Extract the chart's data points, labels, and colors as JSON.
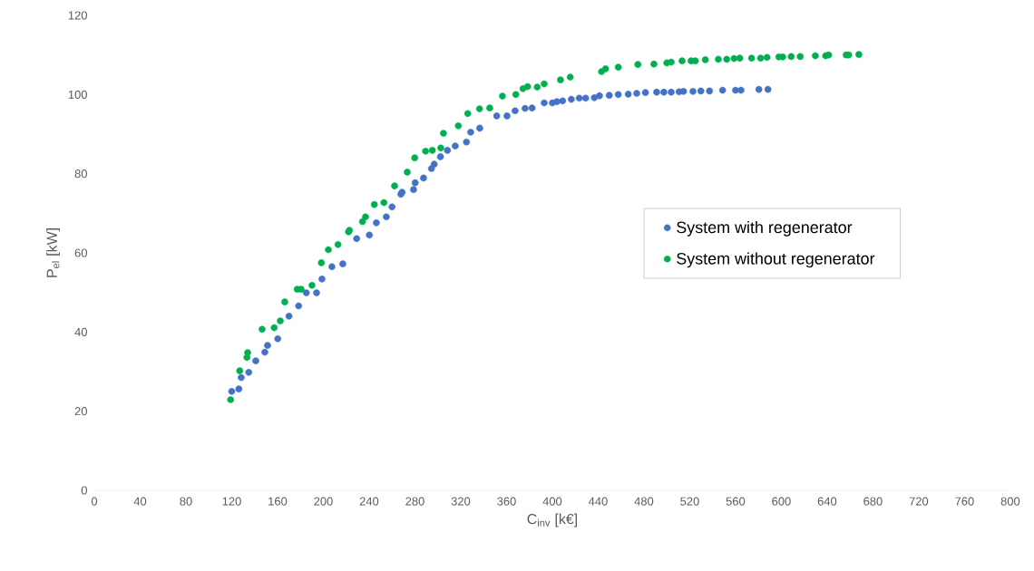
{
  "chart_data": {
    "type": "scatter",
    "xlabel": "C$_{inv}$ [k€]",
    "ylabel": "P$_{el}$ [kW]",
    "xlim": [
      0,
      800
    ],
    "xticks": [
      0,
      40,
      80,
      120,
      160,
      200,
      240,
      280,
      320,
      360,
      400,
      440,
      480,
      520,
      560,
      600,
      640,
      680,
      720,
      760,
      800
    ],
    "ylim": [
      0,
      120
    ],
    "yticks": [
      0,
      20,
      40,
      60,
      80,
      100,
      120
    ],
    "marker": "circle",
    "legend": "right",
    "series": [
      {
        "name": "System with regenerator",
        "color": "#4472c4",
        "x": [
          120,
          126.2,
          128.3,
          134.9,
          141,
          148.9,
          151.3,
          160.2,
          170,
          178.4,
          185.1,
          194.1,
          198.8,
          207.5,
          217,
          229.1,
          240.2,
          246.3,
          255,
          260,
          267.7,
          268.8,
          278.8,
          280.2,
          287.5,
          294.4,
          296.8,
          302.3,
          308.4,
          315.2,
          325,
          328.7,
          336.6,
          351.4,
          360.4,
          367.5,
          376.2,
          382.3,
          392.9,
          400,
          404,
          409,
          416.6,
          423.5,
          429.1,
          436.7,
          441.2,
          449.7,
          457.6,
          466.3,
          473.7,
          481.3,
          491.1,
          497.4,
          503.8,
          510.7,
          514.6,
          522.8,
          529.7,
          537.3,
          548.7,
          560,
          564.8,
          580.4,
          588.3
        ],
        "values": [
          25,
          25.6,
          28.5,
          29.8,
          32.7,
          34.9,
          36.6,
          38.3,
          44,
          46.6,
          49.9,
          49.9,
          53.4,
          56.5,
          57.2,
          63.6,
          64.5,
          67.6,
          69.1,
          71.6,
          74.8,
          75.3,
          76,
          77.7,
          78.9,
          81.3,
          82.4,
          84.3,
          85.9,
          87,
          88,
          90.5,
          91.5,
          94.6,
          94.6,
          95.9,
          96.5,
          96.6,
          97.9,
          97.9,
          98.2,
          98.4,
          98.8,
          99.1,
          99.1,
          99.2,
          99.7,
          99.8,
          100,
          100.1,
          100.3,
          100.5,
          100.6,
          100.6,
          100.6,
          100.7,
          100.8,
          100.8,
          100.9,
          100.9,
          101.1,
          101.1,
          101.1,
          101.3,
          101.3
        ]
      },
      {
        "name": "System without regenerator",
        "color": "#00b050",
        "x": [
          119,
          127,
          133.3,
          133.9,
          146.5,
          157.1,
          162.4,
          166.3,
          177.2,
          180.6,
          190.1,
          198.3,
          204.4,
          212.8,
          222,
          222.8,
          234.2,
          236.8,
          244.5,
          252.9,
          262.2,
          273.3,
          279.8,
          289.3,
          295.2,
          302.6,
          304.9,
          317.9,
          326.1,
          336.4,
          345.3,
          356.4,
          368.1,
          374.4,
          378.4,
          386.8,
          392.9,
          407.1,
          415.6,
          443,
          446.5,
          457.6,
          474.7,
          488.7,
          500,
          503.8,
          513.3,
          521.2,
          524.9,
          533.6,
          545,
          552.3,
          558.7,
          563.7,
          574,
          581.9,
          587.5,
          597.8,
          601.2,
          608.6,
          616.5,
          629.7,
          638.7,
          641.3,
          656.6,
          658.8,
          667.7
        ],
        "values": [
          22.9,
          30.2,
          33.6,
          34.8,
          40.7,
          41.1,
          42.8,
          47.6,
          50.8,
          50.8,
          51.8,
          57.5,
          60.8,
          62.1,
          65.3,
          65.7,
          67.9,
          69.1,
          72.2,
          72.7,
          76.9,
          80.4,
          84,
          85.7,
          85.9,
          86.5,
          90.2,
          92.1,
          95.2,
          96.4,
          96.6,
          99.6,
          100,
          101.5,
          102,
          101.9,
          102.7,
          103.7,
          104.4,
          105.8,
          106.5,
          106.9,
          107.6,
          107.7,
          108,
          108.2,
          108.5,
          108.5,
          108.5,
          108.8,
          108.9,
          108.9,
          109.1,
          109.2,
          109.2,
          109.2,
          109.4,
          109.5,
          109.5,
          109.6,
          109.6,
          109.8,
          109.8,
          110,
          110,
          110,
          110.1
        ]
      }
    ]
  }
}
